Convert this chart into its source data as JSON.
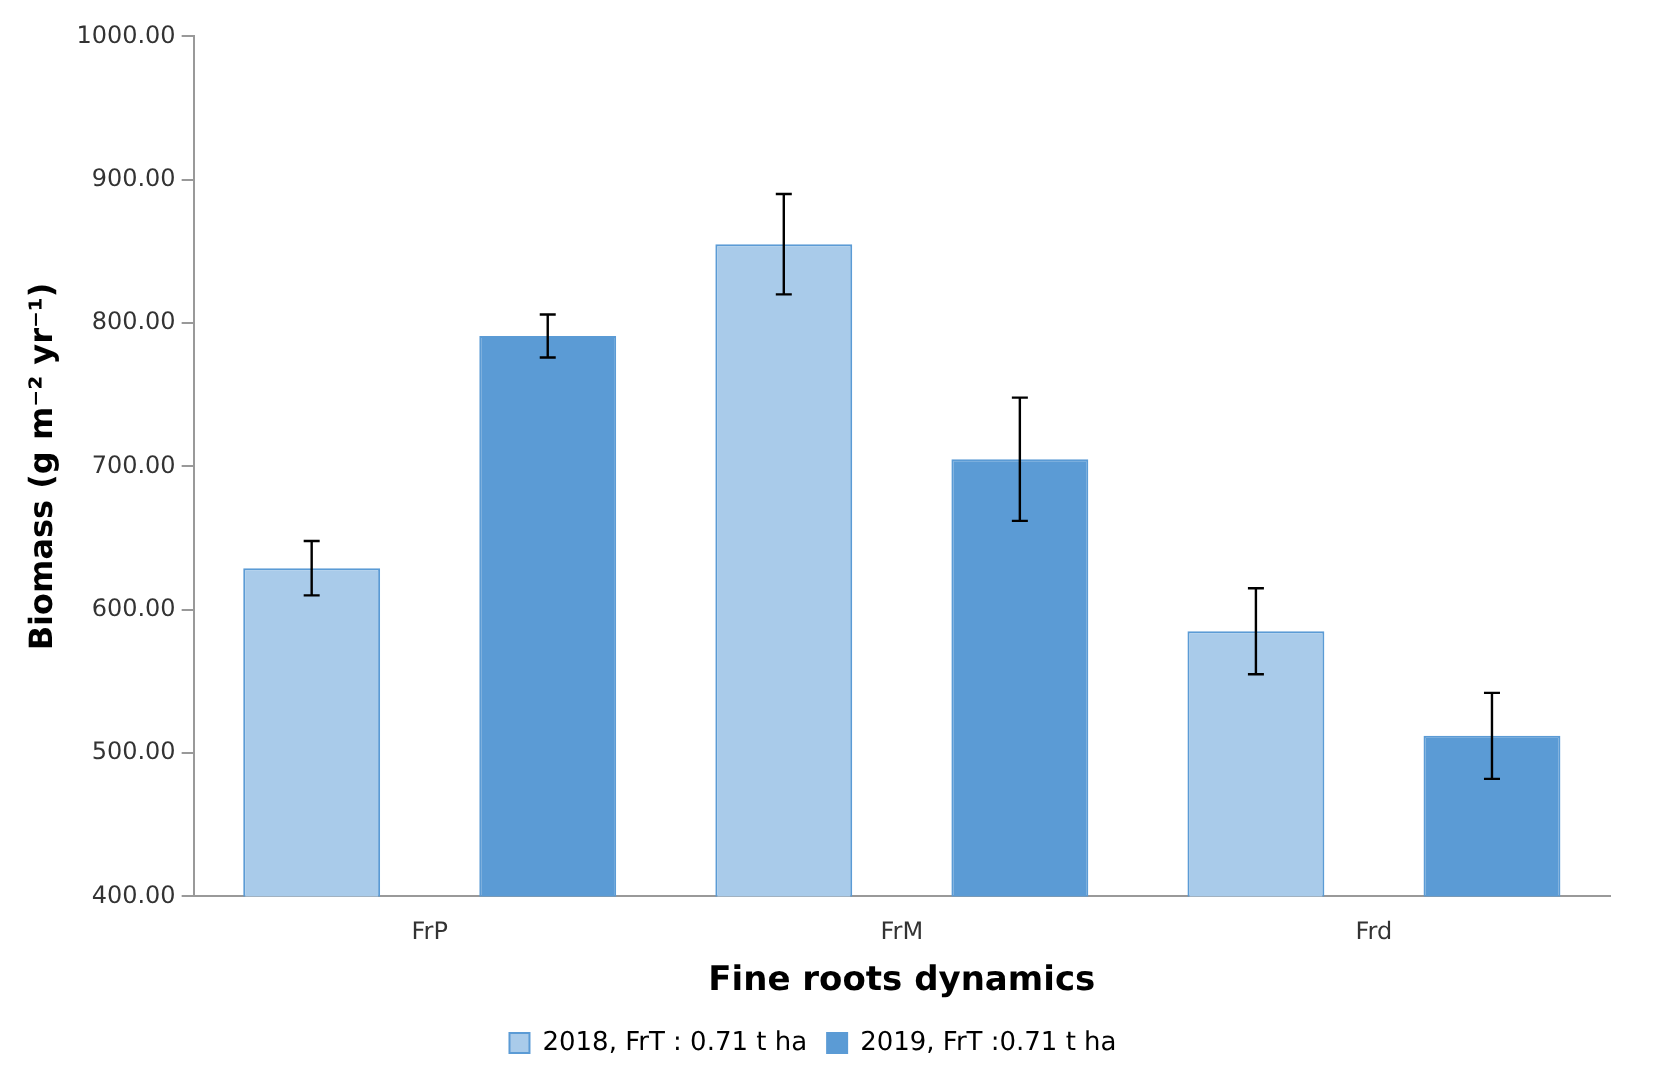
{
  "chart_data": {
    "type": "bar",
    "xlabel": "Fine roots dynamics",
    "ylabel": "Biomass (g m⁻² yr⁻¹)",
    "categories": [
      "FrP",
      "FrM",
      "Frd"
    ],
    "series": [
      {
        "name": "2018, FrT : 0.71 t ha",
        "color": "#a9cbea",
        "values": [
          629,
          855,
          585
        ],
        "errors": [
          19,
          35,
          30
        ]
      },
      {
        "name": "2019, FrT :0.71 t ha",
        "color": "#5b9bd5",
        "values": [
          791,
          705,
          512
        ],
        "errors": [
          15,
          43,
          30
        ]
      }
    ],
    "ylim": [
      400,
      1000
    ],
    "yticks": [
      {
        "value": 400,
        "label": "400.00"
      },
      {
        "value": 500,
        "label": "500.00"
      },
      {
        "value": 600,
        "label": "600.00"
      },
      {
        "value": 700,
        "label": "700.00"
      },
      {
        "value": 800,
        "label": "800.00"
      },
      {
        "value": 900,
        "label": "900.00"
      },
      {
        "value": 1000,
        "label": "1000.00"
      }
    ],
    "grid": false,
    "legend": "bottom"
  }
}
